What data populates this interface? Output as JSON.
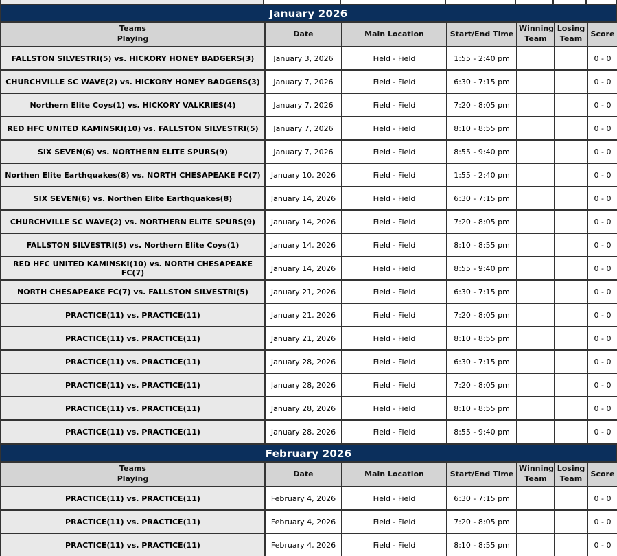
{
  "colors": {
    "banner_bg": "#0b2f5c",
    "banner_text": "#ffffff",
    "header_bg": "#d4d4d4",
    "teams_cell_bg": "#e9e9e9",
    "border": "#333333"
  },
  "table": {
    "headers": [
      "Teams\nPlaying",
      "Date",
      "Main Location",
      "Start/End Time",
      "Winning\nTeam",
      "Losing\nTeam",
      "Score"
    ]
  },
  "months": [
    {
      "title": "January 2026",
      "rows": [
        {
          "teams": "FALLSTON SILVESTRI(5) vs. HICKORY HONEY BADGERS(3)",
          "date": "January 3, 2026",
          "location": "Field - Field",
          "time": "1:55 - 2:40 pm",
          "winning": "",
          "losing": "",
          "score": "0 - 0"
        },
        {
          "teams": "CHURCHVILLE SC WAVE(2) vs. HICKORY HONEY BADGERS(3)",
          "date": "January 7, 2026",
          "location": "Field - Field",
          "time": "6:30 - 7:15 pm",
          "winning": "",
          "losing": "",
          "score": "0 - 0"
        },
        {
          "teams": "Northern Elite Coys(1) vs. HICKORY VALKRIES(4)",
          "date": "January 7, 2026",
          "location": "Field - Field",
          "time": "7:20 - 8:05 pm",
          "winning": "",
          "losing": "",
          "score": "0 - 0"
        },
        {
          "teams": "RED HFC UNITED KAMINSKI(10) vs. FALLSTON SILVESTRI(5)",
          "date": "January 7, 2026",
          "location": "Field - Field",
          "time": "8:10 - 8:55 pm",
          "winning": "",
          "losing": "",
          "score": "0 - 0"
        },
        {
          "teams": "SIX SEVEN(6) vs. NORTHERN ELITE SPURS(9)",
          "date": "January 7, 2026",
          "location": "Field - Field",
          "time": "8:55 - 9:40 pm",
          "winning": "",
          "losing": "",
          "score": "0 - 0"
        },
        {
          "teams": "Northen Elite Earthquakes(8) vs. NORTH CHESAPEAKE FC(7)",
          "date": "January 10, 2026",
          "location": "Field - Field",
          "time": "1:55 - 2:40 pm",
          "winning": "",
          "losing": "",
          "score": "0 - 0"
        },
        {
          "teams": "SIX SEVEN(6) vs. Northen Elite Earthquakes(8)",
          "date": "January 14, 2026",
          "location": "Field - Field",
          "time": "6:30 - 7:15 pm",
          "winning": "",
          "losing": "",
          "score": "0 - 0"
        },
        {
          "teams": "CHURCHVILLE SC WAVE(2) vs. NORTHERN ELITE SPURS(9)",
          "date": "January 14, 2026",
          "location": "Field - Field",
          "time": "7:20 - 8:05 pm",
          "winning": "",
          "losing": "",
          "score": "0 - 0"
        },
        {
          "teams": "FALLSTON SILVESTRI(5) vs. Northern Elite Coys(1)",
          "date": "January 14, 2026",
          "location": "Field - Field",
          "time": "8:10 - 8:55 pm",
          "winning": "",
          "losing": "",
          "score": "0 - 0"
        },
        {
          "teams": "RED HFC UNITED KAMINSKI(10) vs. NORTH CHESAPEAKE FC(7)",
          "date": "January 14, 2026",
          "location": "Field - Field",
          "time": "8:55 - 9:40 pm",
          "winning": "",
          "losing": "",
          "score": "0 - 0"
        },
        {
          "teams": "NORTH CHESAPEAKE FC(7) vs. FALLSTON SILVESTRI(5)",
          "date": "January 21, 2026",
          "location": "Field - Field",
          "time": "6:30 - 7:15 pm",
          "winning": "",
          "losing": "",
          "score": "0 - 0"
        },
        {
          "teams": "PRACTICE(11) vs. PRACTICE(11)",
          "date": "January 21, 2026",
          "location": "Field - Field",
          "time": "7:20 - 8:05 pm",
          "winning": "",
          "losing": "",
          "score": "0 - 0"
        },
        {
          "teams": "PRACTICE(11) vs. PRACTICE(11)",
          "date": "January 21, 2026",
          "location": "Field - Field",
          "time": "8:10 - 8:55 pm",
          "winning": "",
          "losing": "",
          "score": "0 - 0"
        },
        {
          "teams": "PRACTICE(11) vs. PRACTICE(11)",
          "date": "January 28, 2026",
          "location": "Field - Field",
          "time": "6:30 - 7:15 pm",
          "winning": "",
          "losing": "",
          "score": "0 - 0"
        },
        {
          "teams": "PRACTICE(11) vs. PRACTICE(11)",
          "date": "January 28, 2026",
          "location": "Field - Field",
          "time": "7:20 - 8:05 pm",
          "winning": "",
          "losing": "",
          "score": "0 - 0"
        },
        {
          "teams": "PRACTICE(11) vs. PRACTICE(11)",
          "date": "January 28, 2026",
          "location": "Field - Field",
          "time": "8:10 - 8:55 pm",
          "winning": "",
          "losing": "",
          "score": "0 - 0"
        },
        {
          "teams": "PRACTICE(11) vs. PRACTICE(11)",
          "date": "January 28, 2026",
          "location": "Field - Field",
          "time": "8:55 - 9:40 pm",
          "winning": "",
          "losing": "",
          "score": "0 - 0"
        }
      ]
    },
    {
      "title": "February 2026",
      "rows": [
        {
          "teams": "PRACTICE(11) vs. PRACTICE(11)",
          "date": "February 4, 2026",
          "location": "Field - Field",
          "time": "6:30 - 7:15 pm",
          "winning": "",
          "losing": "",
          "score": "0 - 0"
        },
        {
          "teams": "PRACTICE(11) vs. PRACTICE(11)",
          "date": "February 4, 2026",
          "location": "Field - Field",
          "time": "7:20 - 8:05 pm",
          "winning": "",
          "losing": "",
          "score": "0 - 0"
        },
        {
          "teams": "PRACTICE(11) vs. PRACTICE(11)",
          "date": "February 4, 2026",
          "location": "Field - Field",
          "time": "8:10 - 8:55 pm",
          "winning": "",
          "losing": "",
          "score": "0 - 0"
        }
      ]
    }
  ]
}
